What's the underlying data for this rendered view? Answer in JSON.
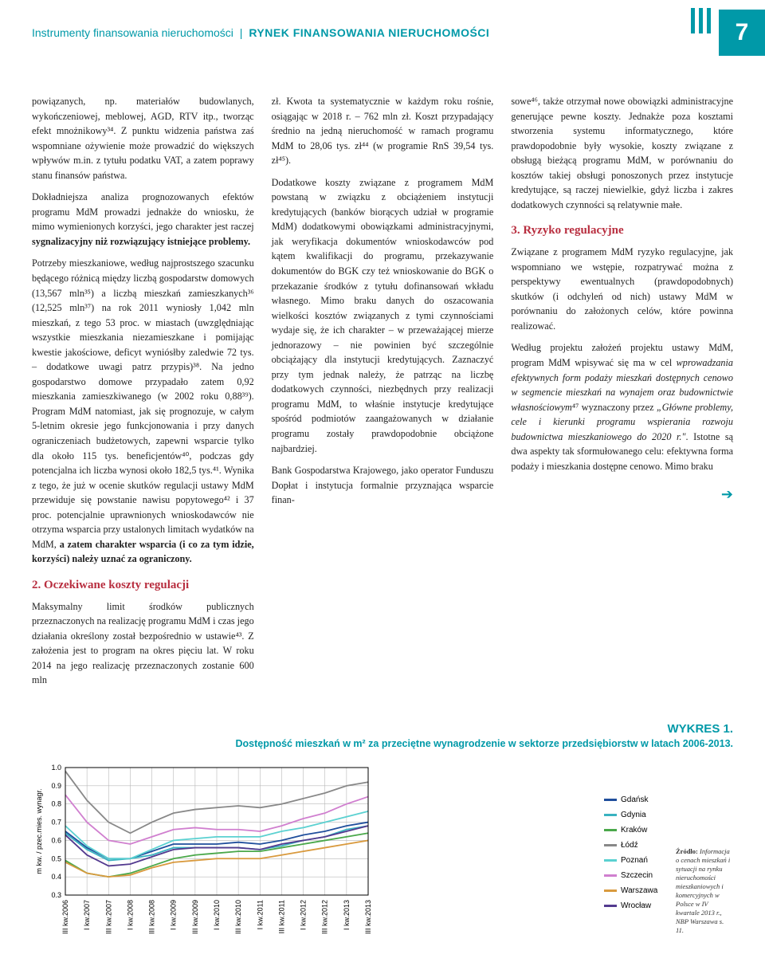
{
  "header": {
    "left": "Instrumenty finansowania nieruchomości",
    "right": "RYNEK FINANSOWANIA NIERUCHOMOŚCI",
    "page_number": "7"
  },
  "col1": {
    "p1": "powiązanych, np. materiałów budowlanych, wykończeniowej, meblowej, AGD, RTV itp., tworząc efekt mnożnikowy³⁴. Z punktu widzenia państwa zaś wspomniane ożywienie może prowadzić do większych wpływów m.in. z tytułu podatku VAT, a zatem poprawy stanu finansów państwa.",
    "p2a": "Dokładniejsza analiza prognozowanych efektów programu MdM prowadzi jednakże do wniosku, że mimo wymienionych korzyści, jego charakter jest raczej ",
    "p2b": "sygnalizacyjny niż rozwiązujący istniejące problemy.",
    "p3a": "Potrzeby mieszkaniowe, według najprostszego szacunku będącego różnicą między liczbą gospodarstw domowych (13,567 mln³⁵) a liczbą mieszkań zamieszkanych³⁶ (12,525 mln³⁷) na rok 2011 wyniosły 1,042 mln mieszkań, z tego 53 proc. w miastach (uwzględniając wszystkie mieszkania niezamieszkane i pomijając kwestie jakościowe, deficyt wyniósłby zaledwie 72 tys. – dodatkowe uwagi patrz przypis)³⁸. Na jedno gospodarstwo domowe przypadało zatem 0,92 mieszkania zamieszkiwanego (w 2002 roku 0,88³⁹). Program MdM natomiast, jak się prognozuje, w całym 5-letnim okresie jego funkcjonowania i przy danych ograniczeniach budżetowych, zapewni wsparcie tylko dla około 115 tys. beneficjentów⁴⁰, podczas gdy potencjalna ich liczba wynosi około 182,5 tys.⁴¹. Wynika z tego, że już w ocenie skutków regulacji ustawy MdM przewiduje się powstanie nawisu popytowego⁴² i 37 proc. potencjalnie uprawnionych wnioskodawców nie otrzyma wsparcia przy ustalonych limitach wydatków na MdM, ",
    "p3b": "a zatem charakter wsparcia (i co za tym idzie, korzyści) należy uznać za ograniczony.",
    "h2": "2. Oczekiwane koszty regulacji",
    "p4": "Maksymalny limit środków publicznych przeznaczonych na realizację programu MdM i czas jego działania określony został bezpośrednio w ustawie⁴³. Z założenia jest to program na okres pięciu lat. W roku 2014 na jego realizację przeznaczonych zostanie 600 mln"
  },
  "col2": {
    "p1": "zł. Kwota ta systematycznie w każdym roku rośnie, osiągając w 2018 r. – 762 mln zł. Koszt przypadający średnio na jedną nieruchomość w ramach programu MdM to 28,06 tys. zł⁴⁴ (w programie RnS 39,54 tys. zł⁴⁵).",
    "p2": "Dodatkowe koszty związane z programem MdM powstaną w związku z obciążeniem instytucji kredytujących (banków biorących udział w programie MdM) dodatkowymi obowiązkami administracyjnymi, jak weryfikacja dokumentów wnioskodawców pod kątem kwalifikacji do programu, przekazywanie dokumentów do BGK czy też wnioskowanie do BGK o przekazanie środków z tytułu dofinansowań wkładu własnego. Mimo braku danych do oszacowania wielkości kosztów związanych z tymi czynnościami wydaje się, że ich charakter – w przeważającej mierze jednorazowy – nie powinien być szczególnie obciążający dla instytucji kredytujących. Zaznaczyć przy tym jednak należy, że patrząc na liczbę dodatkowych czynności, niezbędnych przy realizacji programu MdM, to właśnie instytucje kredytujące spośród podmiotów zaangażowanych w działanie programu zostały prawdopodobnie obciążone najbardziej.",
    "p3": "Bank Gospodarstwa Krajowego, jako operator Funduszu Dopłat i instytucja formalnie przyznająca wsparcie finan-"
  },
  "col3": {
    "p1": "sowe⁴⁶, także otrzymał nowe obowiązki administracyjne generujące pewne koszty. Jednakże poza kosztami stworzenia systemu informatycznego, które prawdopodobnie były wysokie, koszty związane z obsługą bieżącą programu MdM, w porównaniu do kosztów takiej obsługi ponoszonych przez instytucje kredytujące, są raczej niewielkie, gdyż liczba i zakres dodatkowych czynności są relatywnie małe.",
    "h2": "3. Ryzyko regulacyjne",
    "p2": "Związane z programem MdM ryzyko regulacyjne, jak wspomniano we wstępie, rozpatrywać można z perspektywy ewentualnych (prawdopodobnych) skutków (i odchyleń od nich) ustawy MdM w porównaniu do założonych celów, które powinna realizować.",
    "p3a": "Według projektu założeń projektu ustawy MdM, program MdM wpisywać się ma w cel ",
    "p3b": "wprowadzania efektywnych form podaży mieszkań dostępnych cenowo w segmencie mieszkań na wynajem oraz budownictwie własnościowym",
    "p3c": "⁴⁷ wyznaczony przez ",
    "p3d": "„Główne problemy, cele i kierunki programu wspierania rozwoju budownictwa mieszkaniowego do 2020 r.\"",
    "p3e": ". Istotne są dwa aspekty tak sformułowanego celu: efektywna forma podaży i mieszkania dostępne cenowo. Mimo braku"
  },
  "chart": {
    "type": "line",
    "title": "WYKRES 1.",
    "subtitle": "Dostępność mieszkań w m² za przeciętne wynagrodzenie w sektorze przedsiębiorstw w latach 2006-2013.",
    "ylabel": "m kw. / pzec.mies. wynagr.",
    "ylim": [
      0.3,
      1.0
    ],
    "yticks": [
      0.3,
      0.4,
      0.5,
      0.6,
      0.7,
      0.8,
      0.9,
      1.0
    ],
    "xticks": [
      "III kw.2006",
      "I kw.2007",
      "III kw.2007",
      "I kw.2008",
      "III kw.2008",
      "I kw.2009",
      "III kw.2009",
      "I kw.2010",
      "III kw.2010",
      "I kw.2011",
      "III kw.2011",
      "I kw.2012",
      "III kw.2012",
      "I kw.2013",
      "III kw.2013"
    ],
    "plot_bg": "#ffffff",
    "grid_color": "#b8b8b8",
    "axis_color": "#000000",
    "line_width": 1.8,
    "series": [
      {
        "name": "Gdańsk",
        "color": "#1f4e9c",
        "values": [
          0.65,
          0.56,
          0.5,
          0.5,
          0.54,
          0.58,
          0.58,
          0.58,
          0.59,
          0.58,
          0.6,
          0.63,
          0.65,
          0.68,
          0.7
        ]
      },
      {
        "name": "Gdynia",
        "color": "#39b2c0",
        "values": [
          0.64,
          0.55,
          0.49,
          0.5,
          0.52,
          0.56,
          0.56,
          0.56,
          0.56,
          0.55,
          0.57,
          0.6,
          0.62,
          0.66,
          0.68
        ]
      },
      {
        "name": "Kraków",
        "color": "#4aa84a",
        "values": [
          0.49,
          0.42,
          0.4,
          0.42,
          0.46,
          0.5,
          0.52,
          0.53,
          0.54,
          0.54,
          0.56,
          0.58,
          0.6,
          0.62,
          0.64
        ]
      },
      {
        "name": "Łódź",
        "color": "#888888",
        "values": [
          0.98,
          0.82,
          0.7,
          0.64,
          0.7,
          0.75,
          0.77,
          0.78,
          0.79,
          0.78,
          0.8,
          0.83,
          0.86,
          0.9,
          0.92
        ]
      },
      {
        "name": "Poznań",
        "color": "#5bd1d1",
        "values": [
          0.68,
          0.57,
          0.5,
          0.5,
          0.55,
          0.6,
          0.61,
          0.62,
          0.62,
          0.62,
          0.65,
          0.67,
          0.7,
          0.73,
          0.76
        ]
      },
      {
        "name": "Szczecin",
        "color": "#d07fcf",
        "values": [
          0.85,
          0.7,
          0.6,
          0.58,
          0.62,
          0.66,
          0.67,
          0.66,
          0.66,
          0.65,
          0.68,
          0.72,
          0.75,
          0.8,
          0.84
        ]
      },
      {
        "name": "Warszawa",
        "color": "#d99a3e",
        "values": [
          0.48,
          0.42,
          0.4,
          0.41,
          0.45,
          0.48,
          0.49,
          0.5,
          0.5,
          0.5,
          0.52,
          0.54,
          0.56,
          0.58,
          0.6
        ]
      },
      {
        "name": "Wrocław",
        "color": "#533a8f",
        "values": [
          0.63,
          0.52,
          0.46,
          0.47,
          0.51,
          0.55,
          0.56,
          0.56,
          0.56,
          0.55,
          0.58,
          0.6,
          0.62,
          0.65,
          0.68
        ]
      }
    ],
    "source": "Źródło: Informacja o cenach mieszkań i sytuacji na rynku nieruchomości mieszkaniowych i komercyjnych w Polsce w IV kwartale 2013 r., NBP Warszawa s. 11."
  }
}
